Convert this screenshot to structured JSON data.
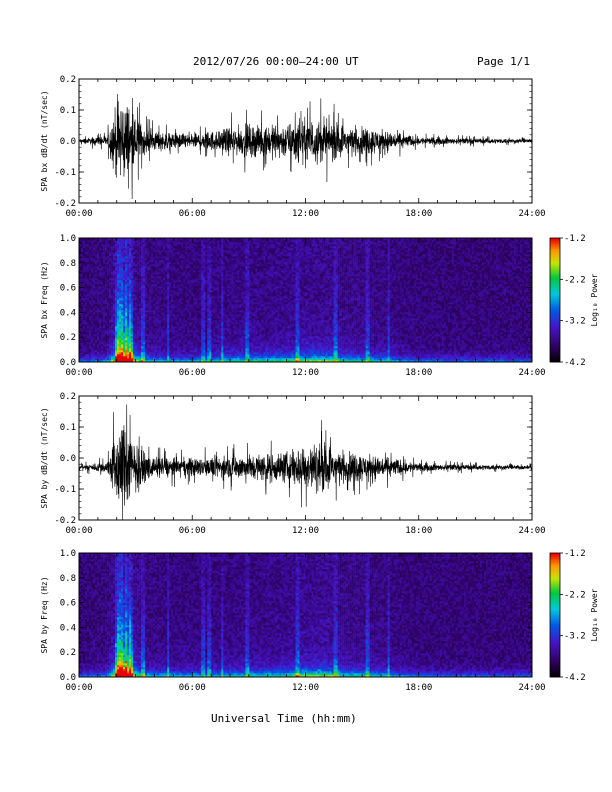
{
  "header": {
    "title": "2012/07/26  00:00–24:00 UT",
    "page": "Page 1/1"
  },
  "x_axis": {
    "label": "Universal Time (hh:mm)",
    "ticks": [
      "00:00",
      "06:00",
      "12:00",
      "18:00",
      "24:00"
    ]
  },
  "colorbar": {
    "label": "Log₁₀ Power",
    "ticks": [
      "-1.2",
      "-2.2",
      "-3.2",
      "-4.2"
    ],
    "range": [
      -4.2,
      -1.2
    ]
  },
  "chart_data": [
    {
      "type": "line",
      "ylabel": "SPA bx dB/dt (nT/sec)",
      "xlim": [
        "00:00",
        "24:00"
      ],
      "ylim": [
        -0.2,
        0.2
      ],
      "yticks": [
        "0.2",
        "0.1",
        "0.0",
        "-0.1",
        "-0.2"
      ],
      "baseline": 0.0,
      "envelope": {
        "x_hours": [
          0,
          1.5,
          2.0,
          2.3,
          2.6,
          3.0,
          3.6,
          4.0,
          5.0,
          6.0,
          7.0,
          8.0,
          9.0,
          10.0,
          11.0,
          12.0,
          13.0,
          14.0,
          15.0,
          16.0,
          17.0,
          18.0,
          20.0,
          24.0
        ],
        "amplitude": [
          0.01,
          0.03,
          0.2,
          0.22,
          0.2,
          0.12,
          0.06,
          0.05,
          0.04,
          0.04,
          0.05,
          0.07,
          0.08,
          0.08,
          0.09,
          0.11,
          0.11,
          0.08,
          0.07,
          0.06,
          0.04,
          0.02,
          0.015,
          0.01
        ]
      }
    },
    {
      "type": "heatmap",
      "ylabel": "SPA bx Freq (Hz)",
      "xlim": [
        "00:00",
        "24:00"
      ],
      "ylim": [
        0.0,
        1.0
      ],
      "yticks": [
        "1.0",
        "0.8",
        "0.6",
        "0.4",
        "0.2",
        "0.0"
      ],
      "zlabel": "Log₁₀ Power",
      "zlim": [
        -4.2,
        -1.2
      ]
    },
    {
      "type": "line",
      "ylabel": "SPA by dB/dt (nT/sec)",
      "xlim": [
        "00:00",
        "24:00"
      ],
      "ylim": [
        -0.2,
        0.2
      ],
      "yticks": [
        "0.2",
        "0.1",
        "0.0",
        "-0.1",
        "-0.2"
      ],
      "baseline": -0.03,
      "envelope": {
        "x_hours": [
          0,
          1.5,
          2.0,
          2.3,
          2.6,
          3.0,
          3.6,
          4.0,
          5.0,
          6.0,
          7.0,
          8.0,
          9.0,
          10.0,
          11.0,
          12.0,
          13.0,
          14.0,
          15.0,
          16.0,
          17.0,
          18.0,
          20.0,
          24.0
        ],
        "amplitude": [
          0.01,
          0.03,
          0.2,
          0.22,
          0.2,
          0.12,
          0.06,
          0.05,
          0.05,
          0.05,
          0.05,
          0.06,
          0.07,
          0.07,
          0.08,
          0.12,
          0.12,
          0.08,
          0.07,
          0.06,
          0.04,
          0.02,
          0.015,
          0.01
        ]
      }
    },
    {
      "type": "heatmap",
      "ylabel": "SPA by Freq (Hz)",
      "xlim": [
        "00:00",
        "24:00"
      ],
      "ylim": [
        0.0,
        1.0
      ],
      "yticks": [
        "1.0",
        "0.8",
        "0.6",
        "0.4",
        "0.2",
        "0.0"
      ],
      "zlabel": "Log₁₀ Power",
      "zlim": [
        -4.2,
        -1.2
      ]
    }
  ]
}
